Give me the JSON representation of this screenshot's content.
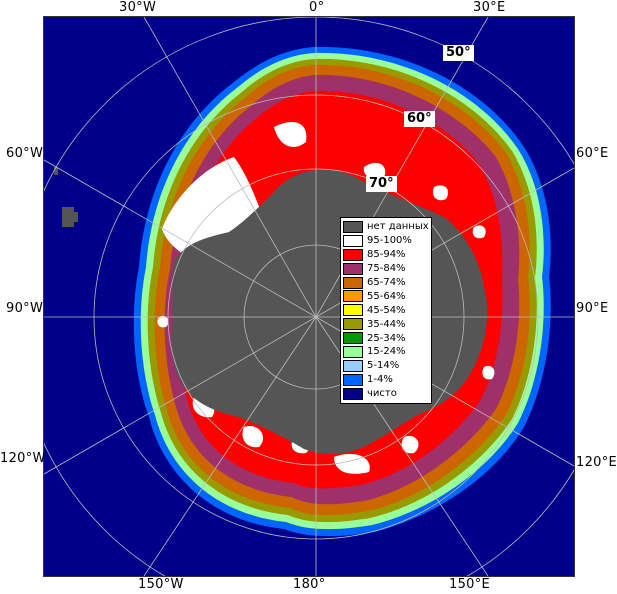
{
  "map": {
    "colors": {
      "open_water": "#00008b",
      "land_nodata": "#555555",
      "coast_white": "#ffffff",
      "grid": "#bbbbbb"
    },
    "lon_labels": {
      "top_30w": "30°W",
      "top_0": "0°",
      "top_30e": "30°E",
      "left_60w": "60°W",
      "right_60e": "60°E",
      "left_90w": "90°W",
      "right_90e": "90°E",
      "left_120w": "120°W",
      "right_120e": "120°E",
      "bottom_150w": "150°W",
      "bottom_180": "180°",
      "bottom_150e": "150°E"
    },
    "lat_labels": {
      "lat50": "50°",
      "lat60": "60°",
      "lat70": "70°"
    }
  },
  "legend": {
    "items": [
      {
        "label": "нет данных",
        "color": "#555555"
      },
      {
        "label": "95-100%",
        "color": "#ffffff"
      },
      {
        "label": "85-94%",
        "color": "#ff0000"
      },
      {
        "label": "75-84%",
        "color": "#a0306a"
      },
      {
        "label": "65-74%",
        "color": "#cc6600"
      },
      {
        "label": "55-64%",
        "color": "#ff9900"
      },
      {
        "label": "45-54%",
        "color": "#ffff00"
      },
      {
        "label": "35-44%",
        "color": "#999900"
      },
      {
        "label": "25-34%",
        "color": "#009900"
      },
      {
        "label": "15-24%",
        "color": "#99ff99"
      },
      {
        "label": "5-14%",
        "color": "#99ccff"
      },
      {
        "label": "1-4%",
        "color": "#0066ff"
      },
      {
        "label": "чисто",
        "color": "#00008b"
      }
    ]
  }
}
